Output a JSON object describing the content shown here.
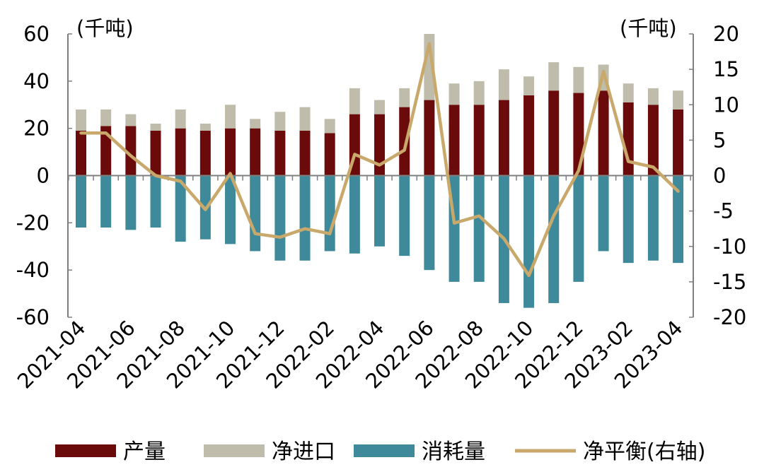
{
  "chart_data": {
    "type": "bar",
    "title": "",
    "left_unit": "(千吨)",
    "right_unit": "(千吨)",
    "categories": [
      "2021-04",
      "2021-05",
      "2021-06",
      "2021-07",
      "2021-08",
      "2021-09",
      "2021-10",
      "2021-11",
      "2021-12",
      "2022-01",
      "2022-02",
      "2022-03",
      "2022-04",
      "2022-05",
      "2022-06",
      "2022-07",
      "2022-08",
      "2022-09",
      "2022-10",
      "2022-11",
      "2022-12",
      "2023-01",
      "2023-02",
      "2023-03",
      "2023-04"
    ],
    "tick_labels": [
      "2021-04",
      "2021-06",
      "2021-08",
      "2021-10",
      "2021-12",
      "2022-02",
      "2022-04",
      "2022-06",
      "2022-08",
      "2022-10",
      "2022-12",
      "2023-02",
      "2023-04"
    ],
    "ylim_left": [
      -60,
      60
    ],
    "yticks_left": [
      "60",
      "40",
      "20",
      "0",
      "-20",
      "-40",
      "-60"
    ],
    "ylim_right": [
      -20,
      20
    ],
    "yticks_right": [
      "20",
      "15",
      "10",
      "5",
      "0",
      "-5",
      "-10",
      "-15",
      "-20"
    ],
    "colors": {
      "production": "#6b0a0b",
      "net_import": "#bfbcab",
      "consumption": "#3f8a9a",
      "net_balance": "#c9a96b",
      "axis": "#7f7f7f"
    },
    "series": [
      {
        "name": "产量",
        "key": "production",
        "type": "bar",
        "stack": "pos",
        "values": [
          19,
          21,
          21,
          19,
          20,
          19,
          20,
          20,
          19,
          19,
          18,
          26,
          26,
          29,
          32,
          30,
          30,
          32,
          34,
          36,
          35,
          36,
          31,
          30,
          28
        ]
      },
      {
        "name": "净进口",
        "key": "net_import",
        "type": "bar",
        "stack": "pos",
        "values": [
          9,
          7,
          5,
          3,
          8,
          3,
          10,
          4,
          8,
          10,
          6,
          11,
          6,
          8,
          28,
          9,
          10,
          13,
          8,
          12,
          11,
          11,
          8,
          7,
          8
        ]
      },
      {
        "name": "消耗量",
        "key": "consumption",
        "type": "bar",
        "stack": "neg",
        "values": [
          -22,
          -22,
          -23,
          -22,
          -28,
          -27,
          -29,
          -32,
          -36,
          -36,
          -32,
          -33,
          -30,
          -34,
          -40,
          -45,
          -45,
          -54,
          -56,
          -54,
          -45,
          -32,
          -37,
          -36,
          -37
        ]
      },
      {
        "name": "净平衡(右轴)",
        "key": "net_balance",
        "type": "line",
        "axis": "right",
        "values": [
          6,
          6,
          2.8,
          0,
          -0.8,
          -4.8,
          0.3,
          -8.2,
          -8.7,
          -7.5,
          -8.2,
          3,
          1.5,
          3.6,
          18.6,
          -6.7,
          -5.7,
          -8.9,
          -14.1,
          -5.7,
          0.7,
          14.7,
          2,
          1.2,
          -2.2
        ]
      }
    ],
    "legend": [
      "产量",
      "净进口",
      "消耗量",
      "净平衡(右轴)"
    ]
  }
}
